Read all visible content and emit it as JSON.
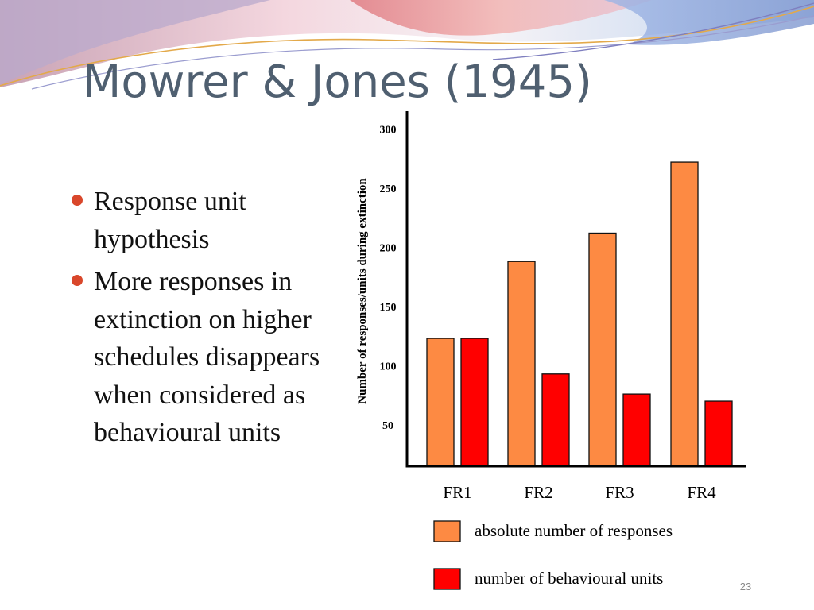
{
  "slide": {
    "title": "Mowrer & Jones (1945)",
    "bullets": [
      {
        "text": "Response unit hypothesis"
      },
      {
        "text": "More responses in extinction on higher schedules disappears when considered as behavioural units"
      }
    ],
    "page_number": "23"
  },
  "colors": {
    "title": "#4f5f70",
    "bullet": "#d9472b",
    "series_responses": "#fd8a43",
    "series_units": "#ff0000"
  },
  "chart_data": {
    "type": "bar",
    "title": "",
    "xlabel": "",
    "ylabel": "Number of responses/units during extinction",
    "categories": [
      "FR1",
      "FR2",
      "FR3",
      "FR4"
    ],
    "series": [
      {
        "name": "absolute number of responses",
        "values": [
          123,
          188,
          212,
          272
        ],
        "color_key": "series_responses"
      },
      {
        "name": "number of behavioural units",
        "values": [
          123,
          93,
          76,
          70
        ],
        "color_key": "series_units"
      }
    ],
    "y_ticks": [
      50,
      100,
      150,
      200,
      250,
      300
    ],
    "ylim": [
      15,
      315
    ],
    "grid": false,
    "legend_position": "bottom"
  }
}
